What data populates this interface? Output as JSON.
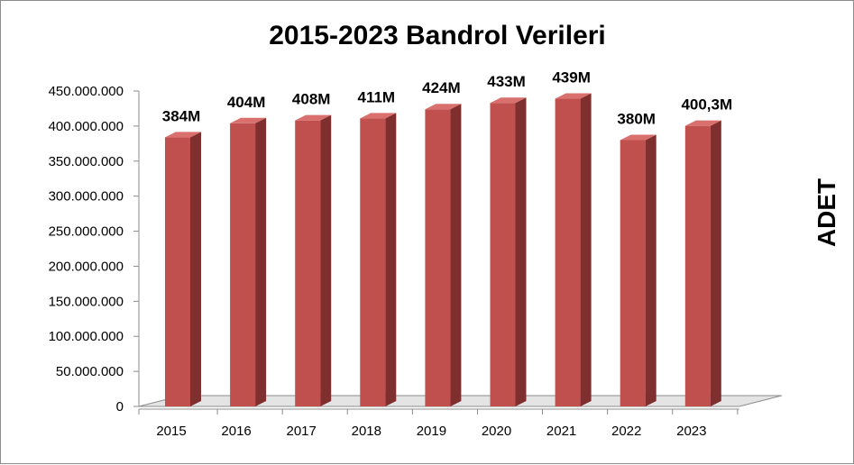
{
  "chart_data": {
    "type": "bar",
    "title": "2015-2023 Bandrol Verileri",
    "xlabel": "",
    "ylabel": "ADET",
    "categories": [
      "2015",
      "2016",
      "2017",
      "2018",
      "2019",
      "2020",
      "2021",
      "2022",
      "2023"
    ],
    "values": [
      384000000,
      404000000,
      408000000,
      411000000,
      424000000,
      433000000,
      439000000,
      380000000,
      400300000
    ],
    "data_labels": [
      "384M",
      "404M",
      "408M",
      "411M",
      "424M",
      "433M",
      "439M",
      "380M",
      "400,3M"
    ],
    "ylim": [
      0,
      450000000
    ],
    "yticks": [
      0,
      50000000,
      100000000,
      150000000,
      200000000,
      250000000,
      300000000,
      350000000,
      400000000,
      450000000
    ],
    "ytick_labels": [
      "0",
      "50.000.000",
      "100.000.000",
      "150.000.000",
      "200.000.000",
      "250.000.000",
      "300.000.000",
      "350.000.000",
      "400.000.000",
      "450.000.000"
    ],
    "grid": false,
    "legend": "none",
    "style": "3d-column",
    "colors": {
      "bar_front": "#c0504d",
      "bar_side": "#7f2f2d",
      "bar_top": "#d9706d",
      "floor": "#e4e4e4",
      "axis": "#8c8c8c"
    }
  }
}
